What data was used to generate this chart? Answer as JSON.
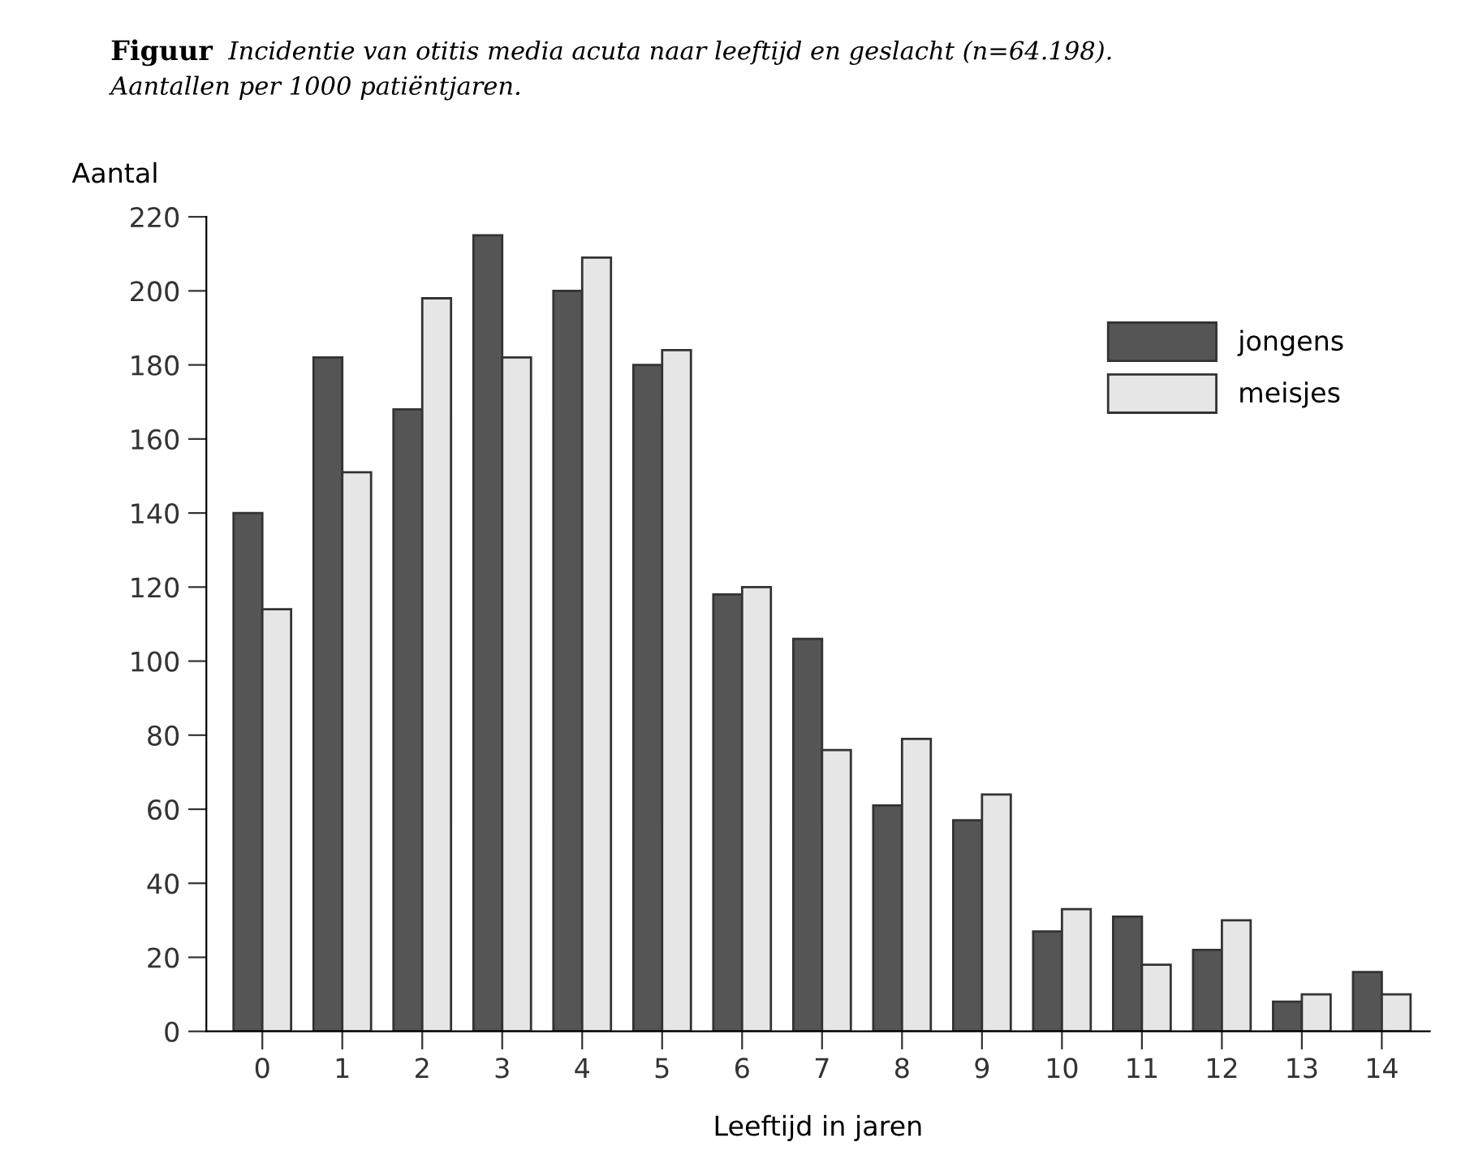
{
  "chart_data": {
    "type": "bar",
    "title": "Figuur",
    "subtitle": "Incidentie van otitis media acuta naar leeftijd en geslacht (n=64.198).\nAantallen per 1000 patiëntjaren.",
    "xlabel": "Leeftijd in jaren",
    "ylabel": "Aantal",
    "categories": [
      "0",
      "1",
      "2",
      "3",
      "4",
      "5",
      "6",
      "7",
      "8",
      "9",
      "10",
      "11",
      "12",
      "13",
      "14"
    ],
    "series": [
      {
        "name": "jongens",
        "color": "#555555",
        "values": [
          140,
          182,
          168,
          215,
          200,
          180,
          118,
          106,
          61,
          57,
          27,
          31,
          22,
          8,
          16
        ]
      },
      {
        "name": "meisjes",
        "color": "#e6e6e6",
        "values": [
          114,
          151,
          198,
          182,
          209,
          184,
          120,
          76,
          79,
          64,
          33,
          18,
          30,
          10,
          10
        ]
      }
    ],
    "ylim": [
      0,
      220
    ],
    "yticks": [
      0,
      20,
      40,
      60,
      80,
      100,
      120,
      140,
      160,
      180,
      200,
      220
    ],
    "grid": false,
    "legend": "top right"
  }
}
